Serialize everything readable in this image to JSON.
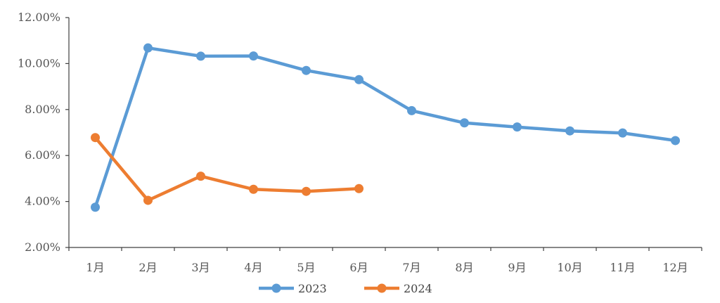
{
  "chart_data": {
    "type": "line",
    "categories": [
      "1月",
      "2月",
      "3月",
      "4月",
      "5月",
      "6月",
      "7月",
      "8月",
      "9月",
      "10月",
      "11月",
      "12月"
    ],
    "series": [
      {
        "name": "2023",
        "color": "#5B9BD5",
        "values": [
          3.75,
          10.68,
          10.32,
          10.33,
          9.7,
          9.3,
          7.95,
          7.42,
          7.24,
          7.07,
          6.98,
          6.65
        ]
      },
      {
        "name": "2024",
        "color": "#ED7D31",
        "values": [
          6.78,
          4.05,
          5.1,
          4.53,
          4.44,
          4.56,
          null,
          null,
          null,
          null,
          null,
          null
        ]
      }
    ],
    "y_tick_labels": [
      "2.00%",
      "4.00%",
      "6.00%",
      "8.00%",
      "10.00%",
      "12.00%"
    ],
    "y_ticks": [
      2,
      4,
      6,
      8,
      10,
      12
    ],
    "ylim": [
      2,
      12
    ],
    "grid": false,
    "legend_position": "bottom-center"
  }
}
